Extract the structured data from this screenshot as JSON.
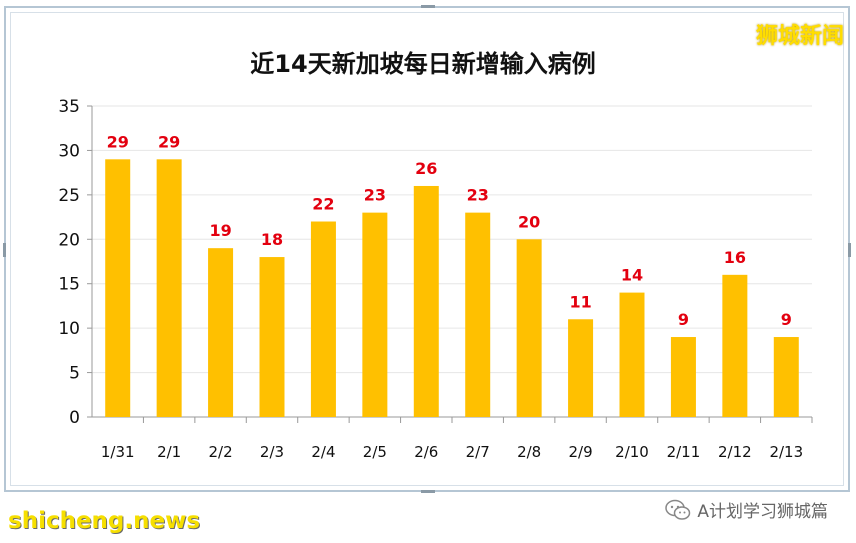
{
  "brand": "狮城新闻",
  "footer": {
    "left_text": "shicheng.news",
    "right_text": "A计划学习狮城篇",
    "right_icon": "wechat-icon"
  },
  "chart_data": {
    "type": "bar",
    "title": "近14天新加坡每日新增输入病例",
    "categories": [
      "1/31",
      "2/1",
      "2/2",
      "2/3",
      "2/4",
      "2/5",
      "2/6",
      "2/7",
      "2/8",
      "2/9",
      "2/10",
      "2/11",
      "2/12",
      "2/13"
    ],
    "values": [
      29,
      29,
      19,
      18,
      22,
      23,
      26,
      23,
      20,
      11,
      14,
      9,
      16,
      9
    ],
    "ylim": [
      0,
      35
    ],
    "yticks": [
      0,
      5,
      10,
      15,
      20,
      25,
      30,
      35
    ],
    "bar_color": "#ffc000",
    "label_color": "#e3000f",
    "grid": true,
    "data_labels": true
  }
}
